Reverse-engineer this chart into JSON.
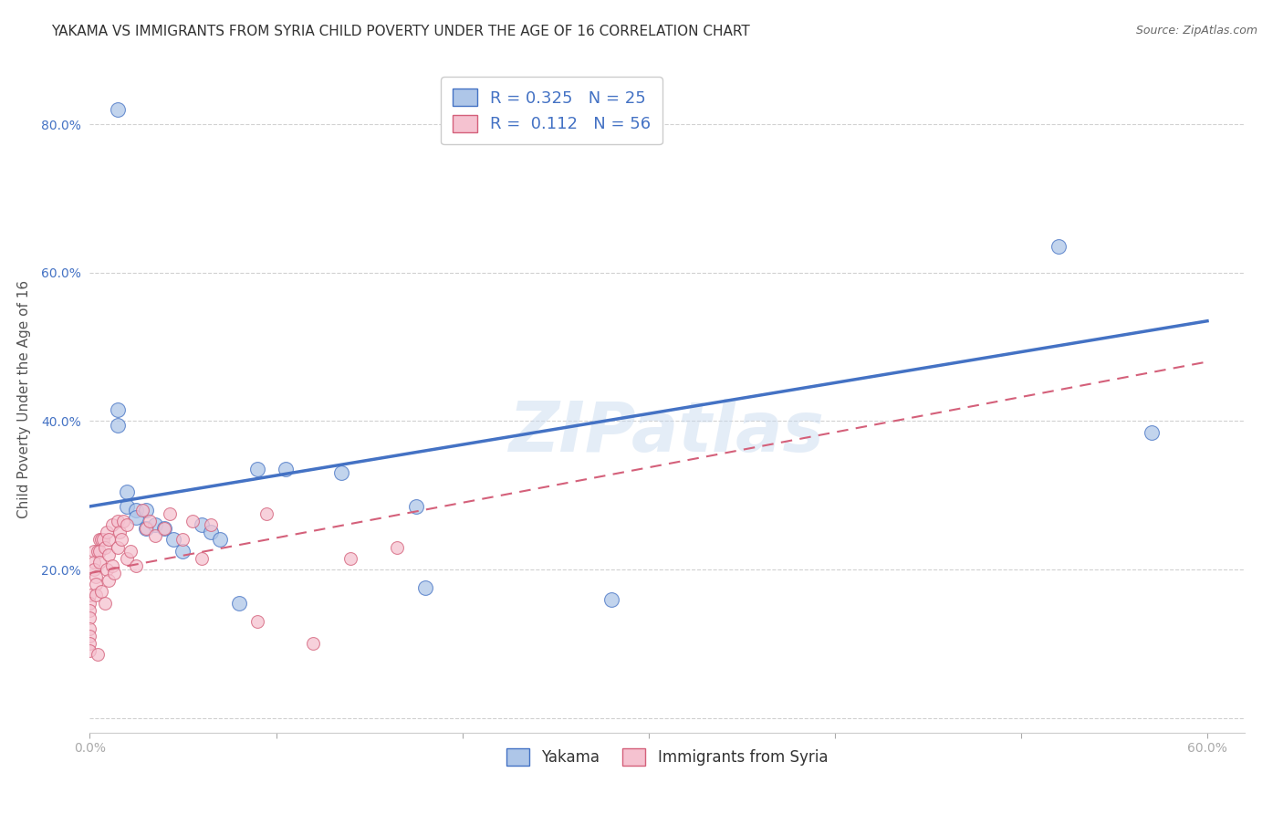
{
  "title": "YAKAMA VS IMMIGRANTS FROM SYRIA CHILD POVERTY UNDER THE AGE OF 16 CORRELATION CHART",
  "source": "Source: ZipAtlas.com",
  "ylabel": "Child Poverty Under the Age of 16",
  "xlim": [
    0.0,
    0.62
  ],
  "ylim": [
    -0.02,
    0.88
  ],
  "xticks": [
    0.0,
    0.1,
    0.2,
    0.3,
    0.4,
    0.5,
    0.6
  ],
  "yticks": [
    0.0,
    0.2,
    0.4,
    0.6,
    0.8
  ],
  "xticklabels": [
    "0.0%",
    "",
    "",
    "",
    "",
    "",
    "60.0%"
  ],
  "yticklabels": [
    "",
    "20.0%",
    "40.0%",
    "60.0%",
    "80.0%"
  ],
  "yakama_R": "0.325",
  "yakama_N": "25",
  "syria_R": "0.112",
  "syria_N": "56",
  "yakama_color": "#aec6e8",
  "yakama_line_color": "#4472c4",
  "syria_color": "#f5c2d0",
  "syria_line_color": "#d4607a",
  "watermark": "ZIPatlas",
  "legend_label_yakama": "Yakama",
  "legend_label_syria": "Immigrants from Syria",
  "yakama_x": [
    0.015,
    0.015,
    0.015,
    0.02,
    0.02,
    0.025,
    0.025,
    0.03,
    0.03,
    0.035,
    0.04,
    0.045,
    0.05,
    0.06,
    0.065,
    0.07,
    0.08,
    0.09,
    0.105,
    0.135,
    0.175,
    0.18,
    0.28,
    0.52,
    0.57
  ],
  "yakama_y": [
    0.82,
    0.415,
    0.395,
    0.305,
    0.285,
    0.28,
    0.27,
    0.28,
    0.255,
    0.26,
    0.255,
    0.24,
    0.225,
    0.26,
    0.25,
    0.24,
    0.155,
    0.335,
    0.335,
    0.33,
    0.285,
    0.175,
    0.16,
    0.635,
    0.385
  ],
  "syria_x": [
    0.0,
    0.0,
    0.0,
    0.0,
    0.0,
    0.0,
    0.0,
    0.0,
    0.002,
    0.002,
    0.002,
    0.003,
    0.003,
    0.003,
    0.004,
    0.004,
    0.005,
    0.005,
    0.005,
    0.006,
    0.006,
    0.007,
    0.008,
    0.008,
    0.009,
    0.009,
    0.01,
    0.01,
    0.01,
    0.012,
    0.012,
    0.013,
    0.015,
    0.015,
    0.016,
    0.017,
    0.018,
    0.02,
    0.02,
    0.022,
    0.025,
    0.028,
    0.03,
    0.032,
    0.035,
    0.04,
    0.043,
    0.05,
    0.055,
    0.06,
    0.065,
    0.09,
    0.095,
    0.12,
    0.14,
    0.165
  ],
  "syria_y": [
    0.165,
    0.155,
    0.145,
    0.135,
    0.12,
    0.11,
    0.1,
    0.09,
    0.225,
    0.21,
    0.2,
    0.19,
    0.18,
    0.165,
    0.225,
    0.085,
    0.24,
    0.225,
    0.21,
    0.24,
    0.17,
    0.24,
    0.23,
    0.155,
    0.25,
    0.2,
    0.24,
    0.22,
    0.185,
    0.26,
    0.205,
    0.195,
    0.265,
    0.23,
    0.25,
    0.24,
    0.265,
    0.26,
    0.215,
    0.225,
    0.205,
    0.28,
    0.255,
    0.265,
    0.245,
    0.255,
    0.275,
    0.24,
    0.265,
    0.215,
    0.26,
    0.13,
    0.275,
    0.1,
    0.215,
    0.23
  ],
  "yakama_line_x0": 0.0,
  "yakama_line_y0": 0.285,
  "yakama_line_x1": 0.6,
  "yakama_line_y1": 0.535,
  "syria_line_x0": 0.0,
  "syria_line_y0": 0.195,
  "syria_line_x1": 0.6,
  "syria_line_y1": 0.48
}
